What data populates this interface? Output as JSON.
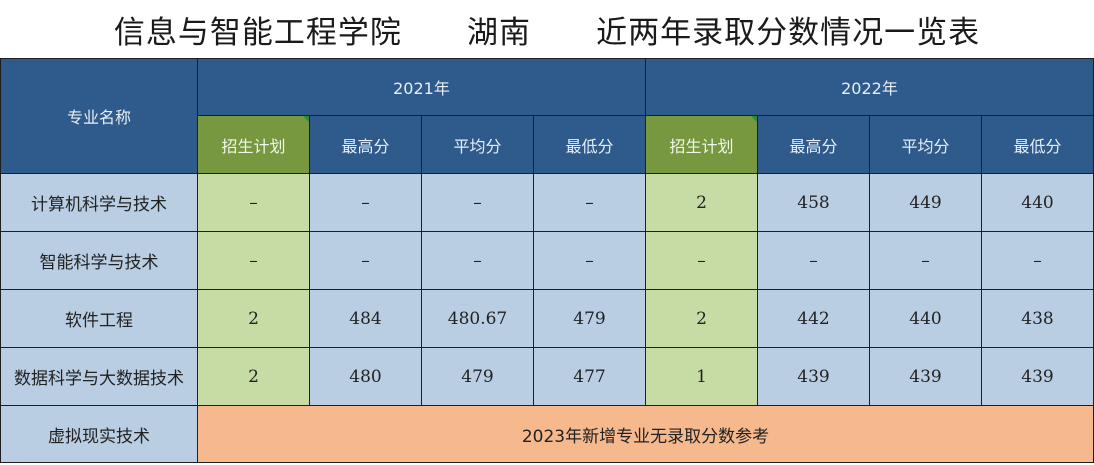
{
  "title": "信息与智能工程学院      湖南      近两年录取分数情况一览表",
  "header": {
    "major_name": "专业名称",
    "year_2021": "2021年",
    "year_2022": "2022年",
    "plan": "招生计划",
    "max": "最高分",
    "avg": "平均分",
    "min": "最低分"
  },
  "rows": [
    {
      "name": "计算机科学与技术",
      "y2021": [
        "–",
        "–",
        "–",
        "–"
      ],
      "y2022": [
        "2",
        "458",
        "449",
        "440"
      ]
    },
    {
      "name": "智能科学与技术",
      "y2021": [
        "–",
        "–",
        "–",
        "–"
      ],
      "y2022": [
        "–",
        "–",
        "–",
        "–"
      ]
    },
    {
      "name": "软件工程",
      "y2021": [
        "2",
        "484",
        "480.67",
        "479"
      ],
      "y2022": [
        "2",
        "442",
        "440",
        "438"
      ]
    },
    {
      "name": "数据科学与大数据技术",
      "y2021": [
        "2",
        "480",
        "479",
        "477"
      ],
      "y2022": [
        "1",
        "439",
        "439",
        "439"
      ]
    }
  ],
  "new_major": {
    "name": "虚拟现实技术",
    "note": "2023年新增专业无录取分数参考"
  },
  "colors": {
    "header_blue": "#2e5b8c",
    "plan_green_header": "#78983f",
    "plan_green_cell": "#c7dca4",
    "cell_blue": "#b9cde3",
    "note_orange": "#f6b98d"
  }
}
